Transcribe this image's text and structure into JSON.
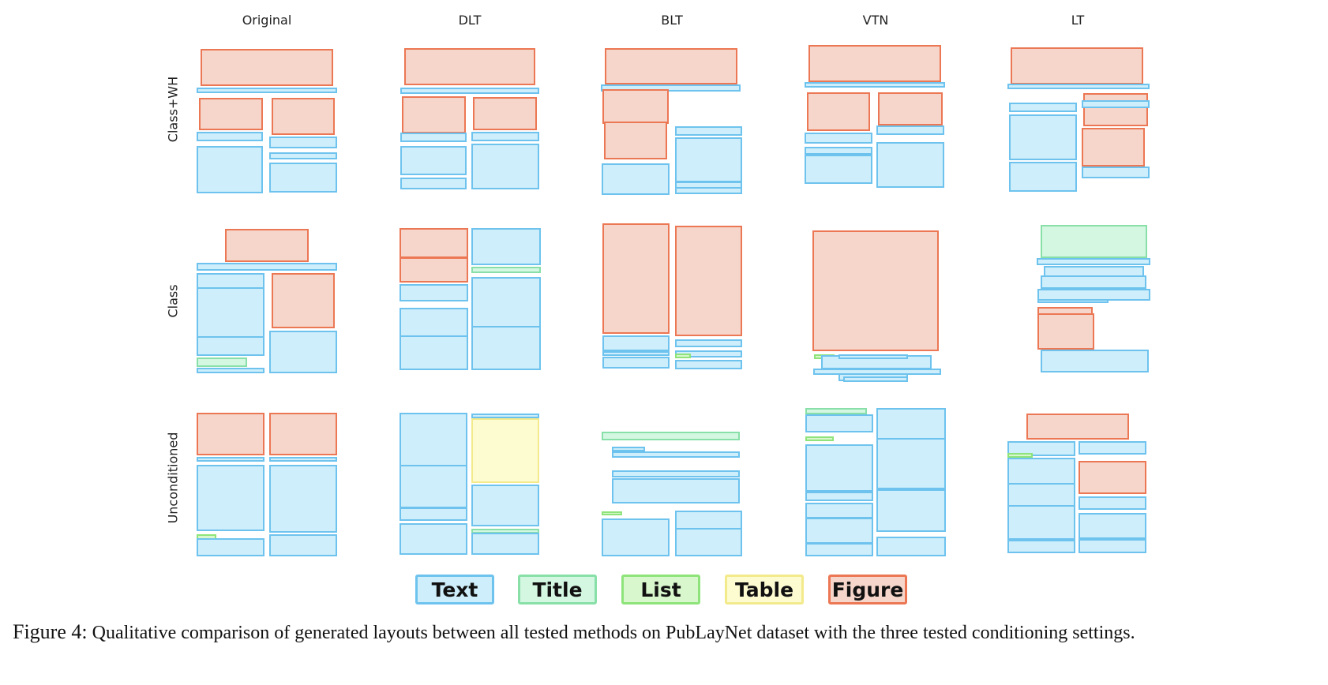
{
  "figure": {
    "columns": [
      "Original",
      "DLT",
      "BLT",
      "VTN",
      "LT"
    ],
    "rows": [
      "Class+WH",
      "Class",
      "Unconditioned"
    ],
    "legend": [
      {
        "label": "Text",
        "color": "#6ec3ee"
      },
      {
        "label": "Title",
        "color": "#88e0a8"
      },
      {
        "label": "List",
        "color": "#8ee47a"
      },
      {
        "label": "Table",
        "color": "#f3ea8c"
      },
      {
        "label": "Figure",
        "color": "#ec7754"
      }
    ],
    "caption_label": "Figure 4:",
    "caption_text": "Qualitative comparison of generated layouts between all tested methods on PubLayNet dataset with the three tested conditioning settings."
  }
}
